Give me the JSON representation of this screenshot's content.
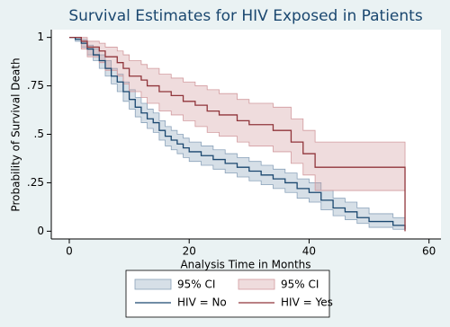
{
  "chart_data": {
    "type": "line",
    "step": "post",
    "title": "Survival Estimates for HIV Exposed in Patients",
    "x_label": "Analysis Time in Months",
    "y_label": "Probability of Survival Death",
    "xlim": [
      -3,
      62
    ],
    "xticks": [
      0,
      20,
      40,
      60
    ],
    "ylim": [
      -0.04,
      1.04
    ],
    "yticks": [
      0,
      {
        "value": 0.25,
        "label": ".25"
      },
      {
        "value": 0.5,
        "label": ".5"
      },
      {
        "value": 0.75,
        "label": ".75"
      },
      1
    ],
    "grid": false,
    "series": [
      {
        "name": "HIV = No",
        "color": "#1a476f",
        "ci_name": "95% CI",
        "ci_color": "#8aa2ba",
        "x": [
          0,
          1,
          2,
          3,
          4,
          5,
          6,
          7,
          8,
          9,
          10,
          11,
          12,
          13,
          14,
          15,
          16,
          17,
          18,
          19,
          20,
          22,
          24,
          26,
          28,
          30,
          32,
          34,
          36,
          38,
          40,
          42,
          44,
          46,
          48,
          50,
          54,
          56
        ],
        "values": [
          1,
          0.99,
          0.97,
          0.94,
          0.91,
          0.88,
          0.84,
          0.8,
          0.77,
          0.72,
          0.68,
          0.64,
          0.61,
          0.58,
          0.56,
          0.52,
          0.49,
          0.47,
          0.45,
          0.43,
          0.41,
          0.39,
          0.37,
          0.35,
          0.33,
          0.31,
          0.29,
          0.27,
          0.25,
          0.22,
          0.2,
          0.16,
          0.12,
          0.1,
          0.07,
          0.05,
          0.03,
          0.01
        ],
        "ci_lower": [
          1,
          0.98,
          0.95,
          0.91,
          0.88,
          0.84,
          0.8,
          0.76,
          0.72,
          0.67,
          0.63,
          0.59,
          0.56,
          0.53,
          0.51,
          0.47,
          0.44,
          0.42,
          0.4,
          0.38,
          0.36,
          0.34,
          0.32,
          0.3,
          0.28,
          0.26,
          0.24,
          0.22,
          0.2,
          0.17,
          0.15,
          0.11,
          0.08,
          0.06,
          0.04,
          0.02,
          0.01,
          0
        ],
        "ci_upper": [
          1,
          1,
          0.99,
          0.96,
          0.94,
          0.91,
          0.88,
          0.84,
          0.81,
          0.77,
          0.73,
          0.69,
          0.66,
          0.63,
          0.61,
          0.57,
          0.54,
          0.52,
          0.5,
          0.48,
          0.46,
          0.44,
          0.42,
          0.4,
          0.38,
          0.36,
          0.34,
          0.32,
          0.3,
          0.27,
          0.25,
          0.21,
          0.17,
          0.15,
          0.12,
          0.09,
          0.07,
          0.05
        ]
      },
      {
        "name": "HIV = Yes",
        "color": "#90353b",
        "ci_name": "95% CI",
        "ci_color": "#d29a9e",
        "x": [
          0,
          2,
          3,
          5,
          6,
          8,
          9,
          10,
          12,
          13,
          15,
          17,
          19,
          21,
          23,
          25,
          28,
          30,
          34,
          37,
          39,
          41,
          56
        ],
        "values": [
          1,
          0.98,
          0.95,
          0.93,
          0.9,
          0.87,
          0.84,
          0.8,
          0.78,
          0.75,
          0.72,
          0.7,
          0.67,
          0.65,
          0.62,
          0.6,
          0.57,
          0.55,
          0.52,
          0.46,
          0.4,
          0.33,
          0
        ],
        "ci_lower": [
          1,
          0.94,
          0.9,
          0.87,
          0.83,
          0.8,
          0.76,
          0.72,
          0.69,
          0.66,
          0.62,
          0.6,
          0.57,
          0.54,
          0.51,
          0.49,
          0.46,
          0.44,
          0.41,
          0.35,
          0.29,
          0.21,
          null
        ],
        "ci_upper": [
          1,
          1,
          0.98,
          0.97,
          0.95,
          0.93,
          0.91,
          0.88,
          0.86,
          0.84,
          0.81,
          0.79,
          0.77,
          0.75,
          0.73,
          0.71,
          0.68,
          0.66,
          0.64,
          0.58,
          0.52,
          0.46,
          null
        ]
      }
    ]
  }
}
